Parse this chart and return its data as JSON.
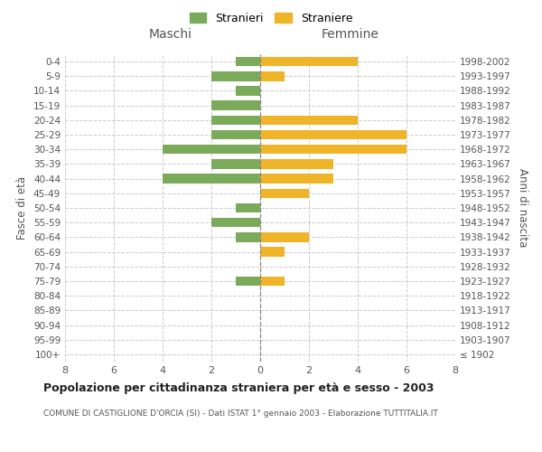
{
  "age_groups": [
    "100+",
    "95-99",
    "90-94",
    "85-89",
    "80-84",
    "75-79",
    "70-74",
    "65-69",
    "60-64",
    "55-59",
    "50-54",
    "45-49",
    "40-44",
    "35-39",
    "30-34",
    "25-29",
    "20-24",
    "15-19",
    "10-14",
    "5-9",
    "0-4"
  ],
  "birth_years": [
    "≤ 1902",
    "1903-1907",
    "1908-1912",
    "1913-1917",
    "1918-1922",
    "1923-1927",
    "1928-1932",
    "1933-1937",
    "1938-1942",
    "1943-1947",
    "1948-1952",
    "1953-1957",
    "1958-1962",
    "1963-1967",
    "1968-1972",
    "1973-1977",
    "1978-1982",
    "1983-1987",
    "1988-1992",
    "1993-1997",
    "1998-2002"
  ],
  "maschi": [
    0,
    0,
    0,
    0,
    0,
    1,
    0,
    0,
    1,
    2,
    1,
    0,
    4,
    2,
    4,
    2,
    2,
    2,
    1,
    2,
    1
  ],
  "femmine": [
    0,
    0,
    0,
    0,
    0,
    1,
    0,
    1,
    2,
    0,
    0,
    2,
    3,
    3,
    6,
    6,
    4,
    0,
    0,
    1,
    4
  ],
  "color_maschi": "#7aaa5a",
  "color_femmine": "#f0b429",
  "background_color": "#ffffff",
  "grid_color": "#cccccc",
  "title": "Popolazione per cittadinanza straniera per età e sesso - 2003",
  "subtitle": "COMUNE DI CASTIGLIONE D'ORCIA (SI) - Dati ISTAT 1° gennaio 2003 - Elaborazione TUTTITALIA.IT",
  "ylabel_left": "Fasce di età",
  "ylabel_right": "Anni di nascita",
  "xlabel_maschi": "Maschi",
  "xlabel_femmine": "Femmine",
  "legend_maschi": "Stranieri",
  "legend_femmine": "Straniere",
  "xlim": 8,
  "fig_width": 6.0,
  "fig_height": 5.0
}
